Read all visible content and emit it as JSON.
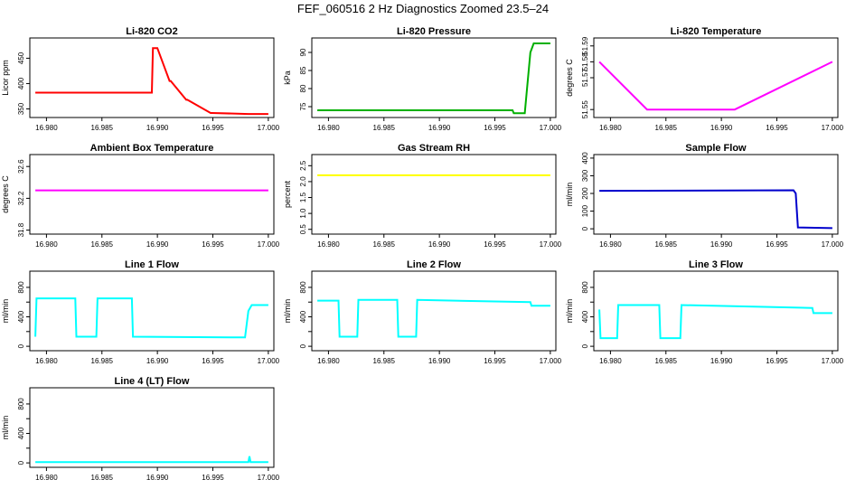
{
  "figure_title": "FEF_060516  2 Hz Diagnostics Zoomed 23.5–24",
  "chart_data": [
    {
      "type": "line",
      "title": "Li-820 CO2",
      "xlabel": "",
      "ylabel": "Licor ppm",
      "xlim": [
        16.9785,
        17.0005
      ],
      "ylim": [
        333,
        490
      ],
      "xticks": [
        16.98,
        16.985,
        16.99,
        16.995,
        17.0
      ],
      "xtick_labels": [
        "16.980",
        "16.985",
        "16.990",
        "16.995",
        "17.000"
      ],
      "yticks": [
        350,
        400,
        450
      ],
      "ytick_labels": [
        "350",
        "400",
        "450"
      ],
      "grid": false,
      "series": [
        {
          "color": "#ff0000",
          "x": [
            16.979,
            16.9895,
            16.9896,
            16.99,
            16.9911,
            16.9912,
            16.9926,
            16.9927,
            16.9948,
            16.9949,
            16.9982,
            16.9983,
            17.0
          ],
          "y": [
            382,
            382,
            470,
            470,
            405,
            405,
            368,
            368,
            342,
            342,
            340,
            340,
            340
          ]
        }
      ]
    },
    {
      "type": "line",
      "title": "Li-820 Pressure",
      "xlabel": "",
      "ylabel": "kPa",
      "xlim": [
        16.9785,
        17.0005
      ],
      "ylim": [
        72,
        94
      ],
      "xticks": [
        16.98,
        16.985,
        16.99,
        16.995,
        17.0
      ],
      "xtick_labels": [
        "16.980",
        "16.985",
        "16.990",
        "16.995",
        "17.000"
      ],
      "yticks": [
        75,
        80,
        85,
        90
      ],
      "ytick_labels": [
        "75",
        "80",
        "85",
        "90"
      ],
      "grid": false,
      "series": [
        {
          "color": "#00b000",
          "x": [
            16.979,
            16.9966,
            16.9967,
            16.9977,
            16.9979,
            16.9982,
            16.9985,
            17.0
          ],
          "y": [
            74,
            74,
            73.2,
            73.2,
            80,
            90,
            92.5,
            92.5
          ]
        }
      ]
    },
    {
      "type": "line",
      "title": "Li-820 Temperature",
      "xlabel": "",
      "ylabel": "degrees C",
      "xlim": [
        16.9785,
        17.0005
      ],
      "ylim": [
        51.545,
        51.595
      ],
      "xticks": [
        16.98,
        16.985,
        16.99,
        16.995,
        17.0
      ],
      "xtick_labels": [
        "16.980",
        "16.985",
        "16.990",
        "16.995",
        "17.000"
      ],
      "yticks": [
        51.55,
        51.57,
        51.58,
        51.59
      ],
      "ytick_labels": [
        "51.55",
        "51.57",
        "51.58",
        "51.59"
      ],
      "grid": false,
      "series": [
        {
          "color": "#ff00ff",
          "x": [
            16.979,
            16.9833,
            16.9912,
            17.0
          ],
          "y": [
            51.58,
            51.55,
            51.55,
            51.58
          ]
        }
      ]
    },
    {
      "type": "line",
      "title": "Ambient Box Temperature",
      "xlabel": "",
      "ylabel": "degrees C",
      "xlim": [
        16.9785,
        17.0005
      ],
      "ylim": [
        31.75,
        32.75
      ],
      "xticks": [
        16.98,
        16.985,
        16.99,
        16.995,
        17.0
      ],
      "xtick_labels": [
        "16.980",
        "16.985",
        "16.990",
        "16.995",
        "17.000"
      ],
      "yticks": [
        31.8,
        32.2,
        32.6
      ],
      "ytick_labels": [
        "31.8",
        "32.2",
        "32.6"
      ],
      "grid": false,
      "series": [
        {
          "color": "#ff00ff",
          "x": [
            16.979,
            17.0
          ],
          "y": [
            32.3,
            32.3
          ]
        }
      ]
    },
    {
      "type": "line",
      "title": "Gas Stream RH",
      "xlabel": "",
      "ylabel": "percent",
      "xlim": [
        16.9785,
        17.0005
      ],
      "ylim": [
        0.35,
        2.85
      ],
      "xticks": [
        16.98,
        16.985,
        16.99,
        16.995,
        17.0
      ],
      "xtick_labels": [
        "16.980",
        "16.985",
        "16.990",
        "16.995",
        "17.000"
      ],
      "yticks": [
        0.5,
        1.0,
        1.5,
        2.0,
        2.5
      ],
      "ytick_labels": [
        "0.5",
        "1.0",
        "1.5",
        "2.0",
        "2.5"
      ],
      "grid": false,
      "series": [
        {
          "color": "#ffff00",
          "x": [
            16.979,
            17.0
          ],
          "y": [
            2.2,
            2.2
          ]
        }
      ]
    },
    {
      "type": "line",
      "title": "Sample Flow",
      "xlabel": "",
      "ylabel": "ml/min",
      "xlim": [
        16.9785,
        17.0005
      ],
      "ylim": [
        -30,
        420
      ],
      "xticks": [
        16.98,
        16.985,
        16.99,
        16.995,
        17.0
      ],
      "xtick_labels": [
        "16.980",
        "16.985",
        "16.990",
        "16.995",
        "17.000"
      ],
      "yticks": [
        0,
        100,
        200,
        300,
        400
      ],
      "ytick_labels": [
        "0",
        "100",
        "200",
        "300",
        "400"
      ],
      "grid": false,
      "series": [
        {
          "color": "#0000cc",
          "x": [
            16.979,
            16.9965,
            16.9967,
            16.9969,
            17.0
          ],
          "y": [
            215,
            218,
            200,
            8,
            4
          ]
        }
      ]
    },
    {
      "type": "line",
      "title": "Line 1 Flow",
      "xlabel": "",
      "ylabel": "ml/min",
      "xlim": [
        16.9785,
        17.0005
      ],
      "ylim": [
        -60,
        1020
      ],
      "xticks": [
        16.98,
        16.985,
        16.99,
        16.995,
        17.0
      ],
      "xtick_labels": [
        "16.980",
        "16.985",
        "16.990",
        "16.995",
        "17.000"
      ],
      "yticks": [
        0,
        200,
        400,
        600,
        800
      ],
      "ytick_labels": [
        "0",
        "",
        "400",
        "",
        "800"
      ],
      "grid": false,
      "series": [
        {
          "color": "#00ffff",
          "x": [
            16.979,
            16.9791,
            16.9826,
            16.9827,
            16.9845,
            16.9846,
            16.9877,
            16.9878,
            16.9979,
            16.9982,
            16.9985,
            17.0
          ],
          "y": [
            130,
            650,
            650,
            130,
            130,
            650,
            650,
            130,
            120,
            480,
            560,
            560
          ]
        }
      ]
    },
    {
      "type": "line",
      "title": "Line 2 Flow",
      "xlabel": "",
      "ylabel": "ml/min",
      "xlim": [
        16.9785,
        17.0005
      ],
      "ylim": [
        -60,
        1020
      ],
      "xticks": [
        16.98,
        16.985,
        16.99,
        16.995,
        17.0
      ],
      "xtick_labels": [
        "16.980",
        "16.985",
        "16.990",
        "16.995",
        "17.000"
      ],
      "yticks": [
        0,
        200,
        400,
        600,
        800
      ],
      "ytick_labels": [
        "0",
        "",
        "400",
        "",
        "800"
      ],
      "grid": false,
      "series": [
        {
          "color": "#00ffff",
          "x": [
            16.979,
            16.9809,
            16.981,
            16.9826,
            16.9827,
            16.9862,
            16.9863,
            16.9879,
            16.988,
            16.9982,
            16.9983,
            17.0
          ],
          "y": [
            620,
            620,
            130,
            130,
            630,
            630,
            130,
            130,
            630,
            600,
            550,
            550
          ]
        }
      ]
    },
    {
      "type": "line",
      "title": "Line 3 Flow",
      "xlabel": "",
      "ylabel": "ml/min",
      "xlim": [
        16.9785,
        17.0005
      ],
      "ylim": [
        -60,
        1020
      ],
      "xticks": [
        16.98,
        16.985,
        16.99,
        16.995,
        17.0
      ],
      "xtick_labels": [
        "16.980",
        "16.985",
        "16.990",
        "16.995",
        "17.000"
      ],
      "yticks": [
        0,
        200,
        400,
        600,
        800
      ],
      "ytick_labels": [
        "0",
        "",
        "400",
        "",
        "800"
      ],
      "grid": false,
      "series": [
        {
          "color": "#00ffff",
          "x": [
            16.979,
            16.9791,
            16.9806,
            16.9807,
            16.9844,
            16.9845,
            16.9863,
            16.9864,
            16.9982,
            16.9983,
            17.0
          ],
          "y": [
            500,
            110,
            110,
            560,
            560,
            110,
            110,
            560,
            520,
            450,
            450
          ]
        }
      ]
    },
    {
      "type": "line",
      "title": "Line 4 (LT) Flow",
      "xlabel": "",
      "ylabel": "ml/min",
      "xlim": [
        16.9785,
        17.0005
      ],
      "ylim": [
        -60,
        1020
      ],
      "xticks": [
        16.98,
        16.985,
        16.99,
        16.995,
        17.0
      ],
      "xtick_labels": [
        "16.980",
        "16.985",
        "16.990",
        "16.995",
        "17.000"
      ],
      "yticks": [
        0,
        200,
        400,
        600,
        800
      ],
      "ytick_labels": [
        "0",
        "",
        "400",
        "",
        "800"
      ],
      "grid": false,
      "series": [
        {
          "color": "#00ffff",
          "x": [
            16.979,
            16.9982,
            16.9983,
            16.9984,
            17.0
          ],
          "y": [
            10,
            10,
            90,
            10,
            10
          ]
        }
      ]
    }
  ]
}
